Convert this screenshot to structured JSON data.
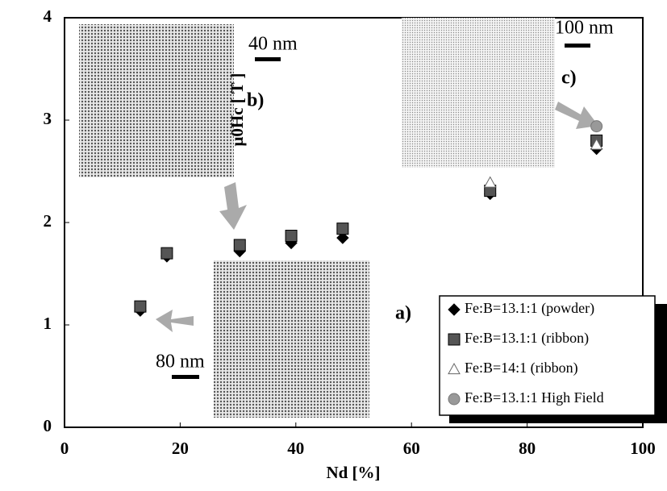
{
  "chart_data": {
    "type": "scatter",
    "xlabel": "Nd [%]",
    "ylabel": "μ0Hc [ T ]",
    "xlim": [
      0,
      100
    ],
    "xticks": [
      0,
      20,
      40,
      60,
      80,
      100
    ],
    "ylim": [
      0,
      4
    ],
    "yticks": [
      0,
      1,
      2,
      3,
      4
    ],
    "grid": false,
    "legend": "lower right",
    "series": [
      {
        "name": "Fe:B=13.1:1 (powder)",
        "color": "#000000",
        "marker": "diamond",
        "x": [
          13.1,
          17.7,
          30.3,
          39.2,
          48.1,
          73.6,
          92
        ],
        "values": [
          1.14,
          1.67,
          1.72,
          1.8,
          1.85,
          2.28,
          2.72
        ]
      },
      {
        "name": "Fe:B=13.1:1 (ribbon)",
        "color": "#555555",
        "marker": "square",
        "x": [
          13.1,
          17.7,
          30.3,
          39.2,
          48.1,
          73.6,
          92
        ],
        "values": [
          1.18,
          1.7,
          1.78,
          1.87,
          1.94,
          2.31,
          2.8
        ]
      },
      {
        "name": "Fe:B=14:1 (ribbon)",
        "color": "#ffffff",
        "marker": "triangle",
        "x": [
          73.6,
          92
        ],
        "values": [
          2.39,
          2.76
        ]
      },
      {
        "name": "Fe:B=13.1:1 High Field",
        "color": "#999999",
        "marker": "circle",
        "x": [
          92
        ],
        "values": [
          2.94
        ]
      }
    ],
    "annotations": [
      "40 nm",
      "b)",
      "100 nm",
      "c)",
      "80 nm",
      "a)"
    ]
  }
}
